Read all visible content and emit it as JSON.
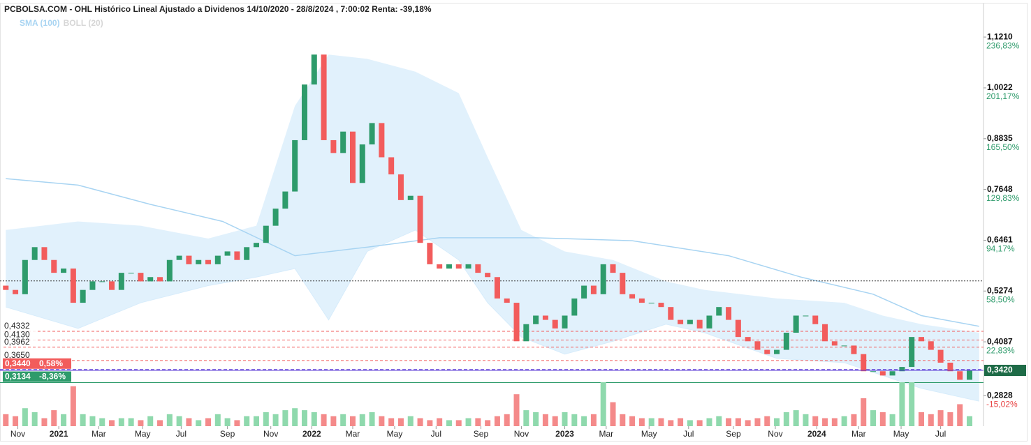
{
  "chart_data": {
    "type": "candlestick",
    "title": "PCBOLSA.COM - OHL Histórico Lineal Ajustado a Dividenos 14/10/2020 - 28/8/2024 , 7:00:02 Renta: -39,18%",
    "legend": [
      {
        "name": "SMA (100)",
        "color": "#a8d4f2"
      },
      {
        "name": "BOLL (20)",
        "color": "#d6d6d6"
      }
    ],
    "up_color": "#2e9b6b",
    "down_color": "#f25c5c",
    "xlim": [
      -1.2,
      202.9
    ],
    "ylim": [
      0.2116,
      1.1994
    ],
    "vol_lim": [
      0,
      110
    ],
    "yticks": [
      {
        "value": 1.121,
        "label": "1,1210",
        "pct": "236,83%"
      },
      {
        "value": 1.0022,
        "label": "1,0022",
        "pct": "201,17%"
      },
      {
        "value": 0.8835,
        "label": "0,8835",
        "pct": "165,50%"
      },
      {
        "value": 0.7648,
        "label": "0,7648",
        "pct": "129,83%"
      },
      {
        "value": 0.6461,
        "label": "0,6461",
        "pct": "94,17%"
      },
      {
        "value": 0.5274,
        "label": "0,5274",
        "pct": "58,50%"
      },
      {
        "value": 0.4087,
        "label": "0,4087",
        "pct": "22,83%"
      },
      {
        "value": 0.2828,
        "label": "0,2828",
        "pct": "-15,02%"
      }
    ],
    "xticks": [
      {
        "value": 2.5,
        "label": "Nov"
      },
      {
        "value": 11,
        "label": "2021"
      },
      {
        "value": 19.3,
        "label": "Mar"
      },
      {
        "value": 28.4,
        "label": "May"
      },
      {
        "value": 36.4,
        "label": "Jul"
      },
      {
        "value": 46,
        "label": "Sep"
      },
      {
        "value": 55,
        "label": "Nov"
      },
      {
        "value": 63.5,
        "label": "2022"
      },
      {
        "value": 72,
        "label": "Mar"
      },
      {
        "value": 80.7,
        "label": "May"
      },
      {
        "value": 89.3,
        "label": "Jul"
      },
      {
        "value": 98.6,
        "label": "Sep"
      },
      {
        "value": 107,
        "label": "Nov"
      },
      {
        "value": 116,
        "label": "2023"
      },
      {
        "value": 124.6,
        "label": "Mar"
      },
      {
        "value": 133.5,
        "label": "May"
      },
      {
        "value": 141.7,
        "label": "Jul"
      },
      {
        "value": 151,
        "label": "Sep"
      },
      {
        "value": 159.7,
        "label": "Nov"
      },
      {
        "value": 168.3,
        "label": "2024"
      },
      {
        "value": 177,
        "label": "Mar"
      },
      {
        "value": 185.8,
        "label": "May"
      },
      {
        "value": 194,
        "label": "Jul"
      }
    ],
    "levels": [
      {
        "value": 0.4332,
        "label": "0,4332"
      },
      {
        "value": 0.413,
        "label": "0,4130"
      },
      {
        "value": 0.3962,
        "label": "0,3962"
      },
      {
        "value": 0.365,
        "label": "0,3650"
      }
    ],
    "price_marks": [
      {
        "value": 0.344,
        "label": "0,3440",
        "change": "0,58%",
        "color": "#f25c5c"
      },
      {
        "value": 0.3134,
        "label": "0,3134",
        "change": "-8,36%",
        "color": "#2e9b6b"
      }
    ],
    "last": {
      "value": 0.342,
      "label": "0,3420"
    },
    "reference_line": 0.551,
    "candles": {
      "x": [
        0,
        2,
        4,
        6,
        8,
        10,
        12,
        14,
        16,
        18,
        20,
        22,
        24,
        26,
        28,
        30,
        32,
        34,
        36,
        38,
        40,
        42,
        44,
        46,
        48,
        50,
        52,
        54,
        56,
        58,
        60,
        62,
        64,
        66,
        68,
        70,
        72,
        74,
        76,
        78,
        80,
        82,
        84,
        86,
        88,
        90,
        92,
        94,
        96,
        98,
        100,
        102,
        104,
        106,
        108,
        110,
        112,
        114,
        116,
        118,
        120,
        122,
        124,
        126,
        128,
        130,
        132,
        134,
        136,
        138,
        140,
        142,
        144,
        146,
        148,
        150,
        152,
        154,
        156,
        158,
        160,
        162,
        164,
        166,
        168,
        170,
        172,
        174,
        176,
        178,
        180,
        182,
        184,
        186,
        188,
        190,
        192,
        194,
        196,
        198,
        200
      ],
      "open": [
        0.54,
        0.53,
        0.52,
        0.6,
        0.63,
        0.6,
        0.57,
        0.58,
        0.5,
        0.53,
        0.55,
        0.55,
        0.53,
        0.57,
        0.57,
        0.55,
        0.56,
        0.55,
        0.6,
        0.61,
        0.59,
        0.6,
        0.59,
        0.61,
        0.62,
        0.6,
        0.63,
        0.64,
        0.68,
        0.72,
        0.76,
        0.88,
        1.01,
        1.08,
        0.88,
        0.85,
        0.9,
        0.78,
        0.87,
        0.92,
        0.84,
        0.8,
        0.74,
        0.75,
        0.64,
        0.59,
        0.58,
        0.59,
        0.58,
        0.59,
        0.57,
        0.56,
        0.51,
        0.5,
        0.41,
        0.45,
        0.47,
        0.46,
        0.44,
        0.47,
        0.51,
        0.54,
        0.52,
        0.59,
        0.57,
        0.52,
        0.51,
        0.5,
        0.5,
        0.49,
        0.46,
        0.45,
        0.46,
        0.44,
        0.47,
        0.49,
        0.46,
        0.42,
        0.41,
        0.39,
        0.38,
        0.39,
        0.43,
        0.47,
        0.47,
        0.45,
        0.41,
        0.4,
        0.4,
        0.38,
        0.34,
        0.34,
        0.33,
        0.34,
        0.35,
        0.42,
        0.41,
        0.39,
        0.36,
        0.34,
        0.32
      ],
      "close": [
        0.53,
        0.52,
        0.6,
        0.63,
        0.6,
        0.57,
        0.58,
        0.5,
        0.53,
        0.55,
        0.55,
        0.53,
        0.57,
        0.57,
        0.55,
        0.56,
        0.55,
        0.6,
        0.61,
        0.59,
        0.6,
        0.59,
        0.61,
        0.62,
        0.6,
        0.63,
        0.64,
        0.68,
        0.72,
        0.76,
        0.88,
        1.01,
        1.08,
        0.88,
        0.85,
        0.9,
        0.78,
        0.87,
        0.92,
        0.84,
        0.8,
        0.74,
        0.75,
        0.64,
        0.59,
        0.58,
        0.59,
        0.58,
        0.59,
        0.57,
        0.56,
        0.51,
        0.5,
        0.41,
        0.45,
        0.47,
        0.46,
        0.44,
        0.47,
        0.51,
        0.54,
        0.52,
        0.59,
        0.57,
        0.52,
        0.51,
        0.5,
        0.5,
        0.49,
        0.46,
        0.45,
        0.46,
        0.44,
        0.47,
        0.49,
        0.46,
        0.42,
        0.41,
        0.39,
        0.38,
        0.39,
        0.43,
        0.47,
        0.47,
        0.45,
        0.41,
        0.4,
        0.4,
        0.38,
        0.34,
        0.34,
        0.33,
        0.34,
        0.35,
        0.42,
        0.41,
        0.39,
        0.36,
        0.34,
        0.32,
        0.342
      ],
      "volume": [
        30,
        25,
        45,
        35,
        20,
        40,
        30,
        100,
        30,
        25,
        20,
        15,
        20,
        20,
        15,
        25,
        15,
        30,
        25,
        20,
        15,
        20,
        30,
        20,
        15,
        25,
        25,
        35,
        30,
        40,
        45,
        40,
        35,
        30,
        25,
        30,
        25,
        30,
        35,
        25,
        20,
        20,
        25,
        20,
        15,
        20,
        15,
        15,
        20,
        20,
        15,
        25,
        30,
        80,
        40,
        35,
        30,
        25,
        35,
        30,
        25,
        30,
        110,
        60,
        30,
        25,
        20,
        20,
        20,
        15,
        20,
        15,
        15,
        20,
        25,
        20,
        20,
        15,
        20,
        25,
        20,
        35,
        40,
        30,
        25,
        20,
        20,
        25,
        30,
        70,
        40,
        35,
        30,
        110,
        110,
        35,
        30,
        40,
        35,
        55,
        25
      ]
    },
    "sma": {
      "x": [
        0,
        15,
        30,
        45,
        60,
        75,
        90,
        110,
        130,
        150,
        165,
        180,
        190,
        202
      ],
      "values": [
        0.79,
        0.775,
        0.73,
        0.69,
        0.61,
        0.63,
        0.652,
        0.652,
        0.645,
        0.61,
        0.56,
        0.52,
        0.47,
        0.445
      ]
    },
    "bollinger": {
      "x": [
        0,
        15,
        28,
        42,
        52,
        60,
        67,
        75,
        85,
        94,
        100,
        107,
        116,
        126,
        137,
        145,
        160,
        174,
        182,
        190,
        202
      ],
      "upper": [
        0.67,
        0.69,
        0.68,
        0.65,
        0.68,
        0.96,
        1.08,
        1.07,
        1.04,
        0.99,
        0.84,
        0.67,
        0.62,
        0.6,
        0.55,
        0.53,
        0.51,
        0.5,
        0.47,
        0.45,
        0.43
      ],
      "lower": [
        0.49,
        0.44,
        0.5,
        0.54,
        0.56,
        0.58,
        0.46,
        0.62,
        0.67,
        0.6,
        0.5,
        0.42,
        0.38,
        0.41,
        0.45,
        0.43,
        0.37,
        0.36,
        0.33,
        0.3,
        0.27
      ]
    }
  }
}
